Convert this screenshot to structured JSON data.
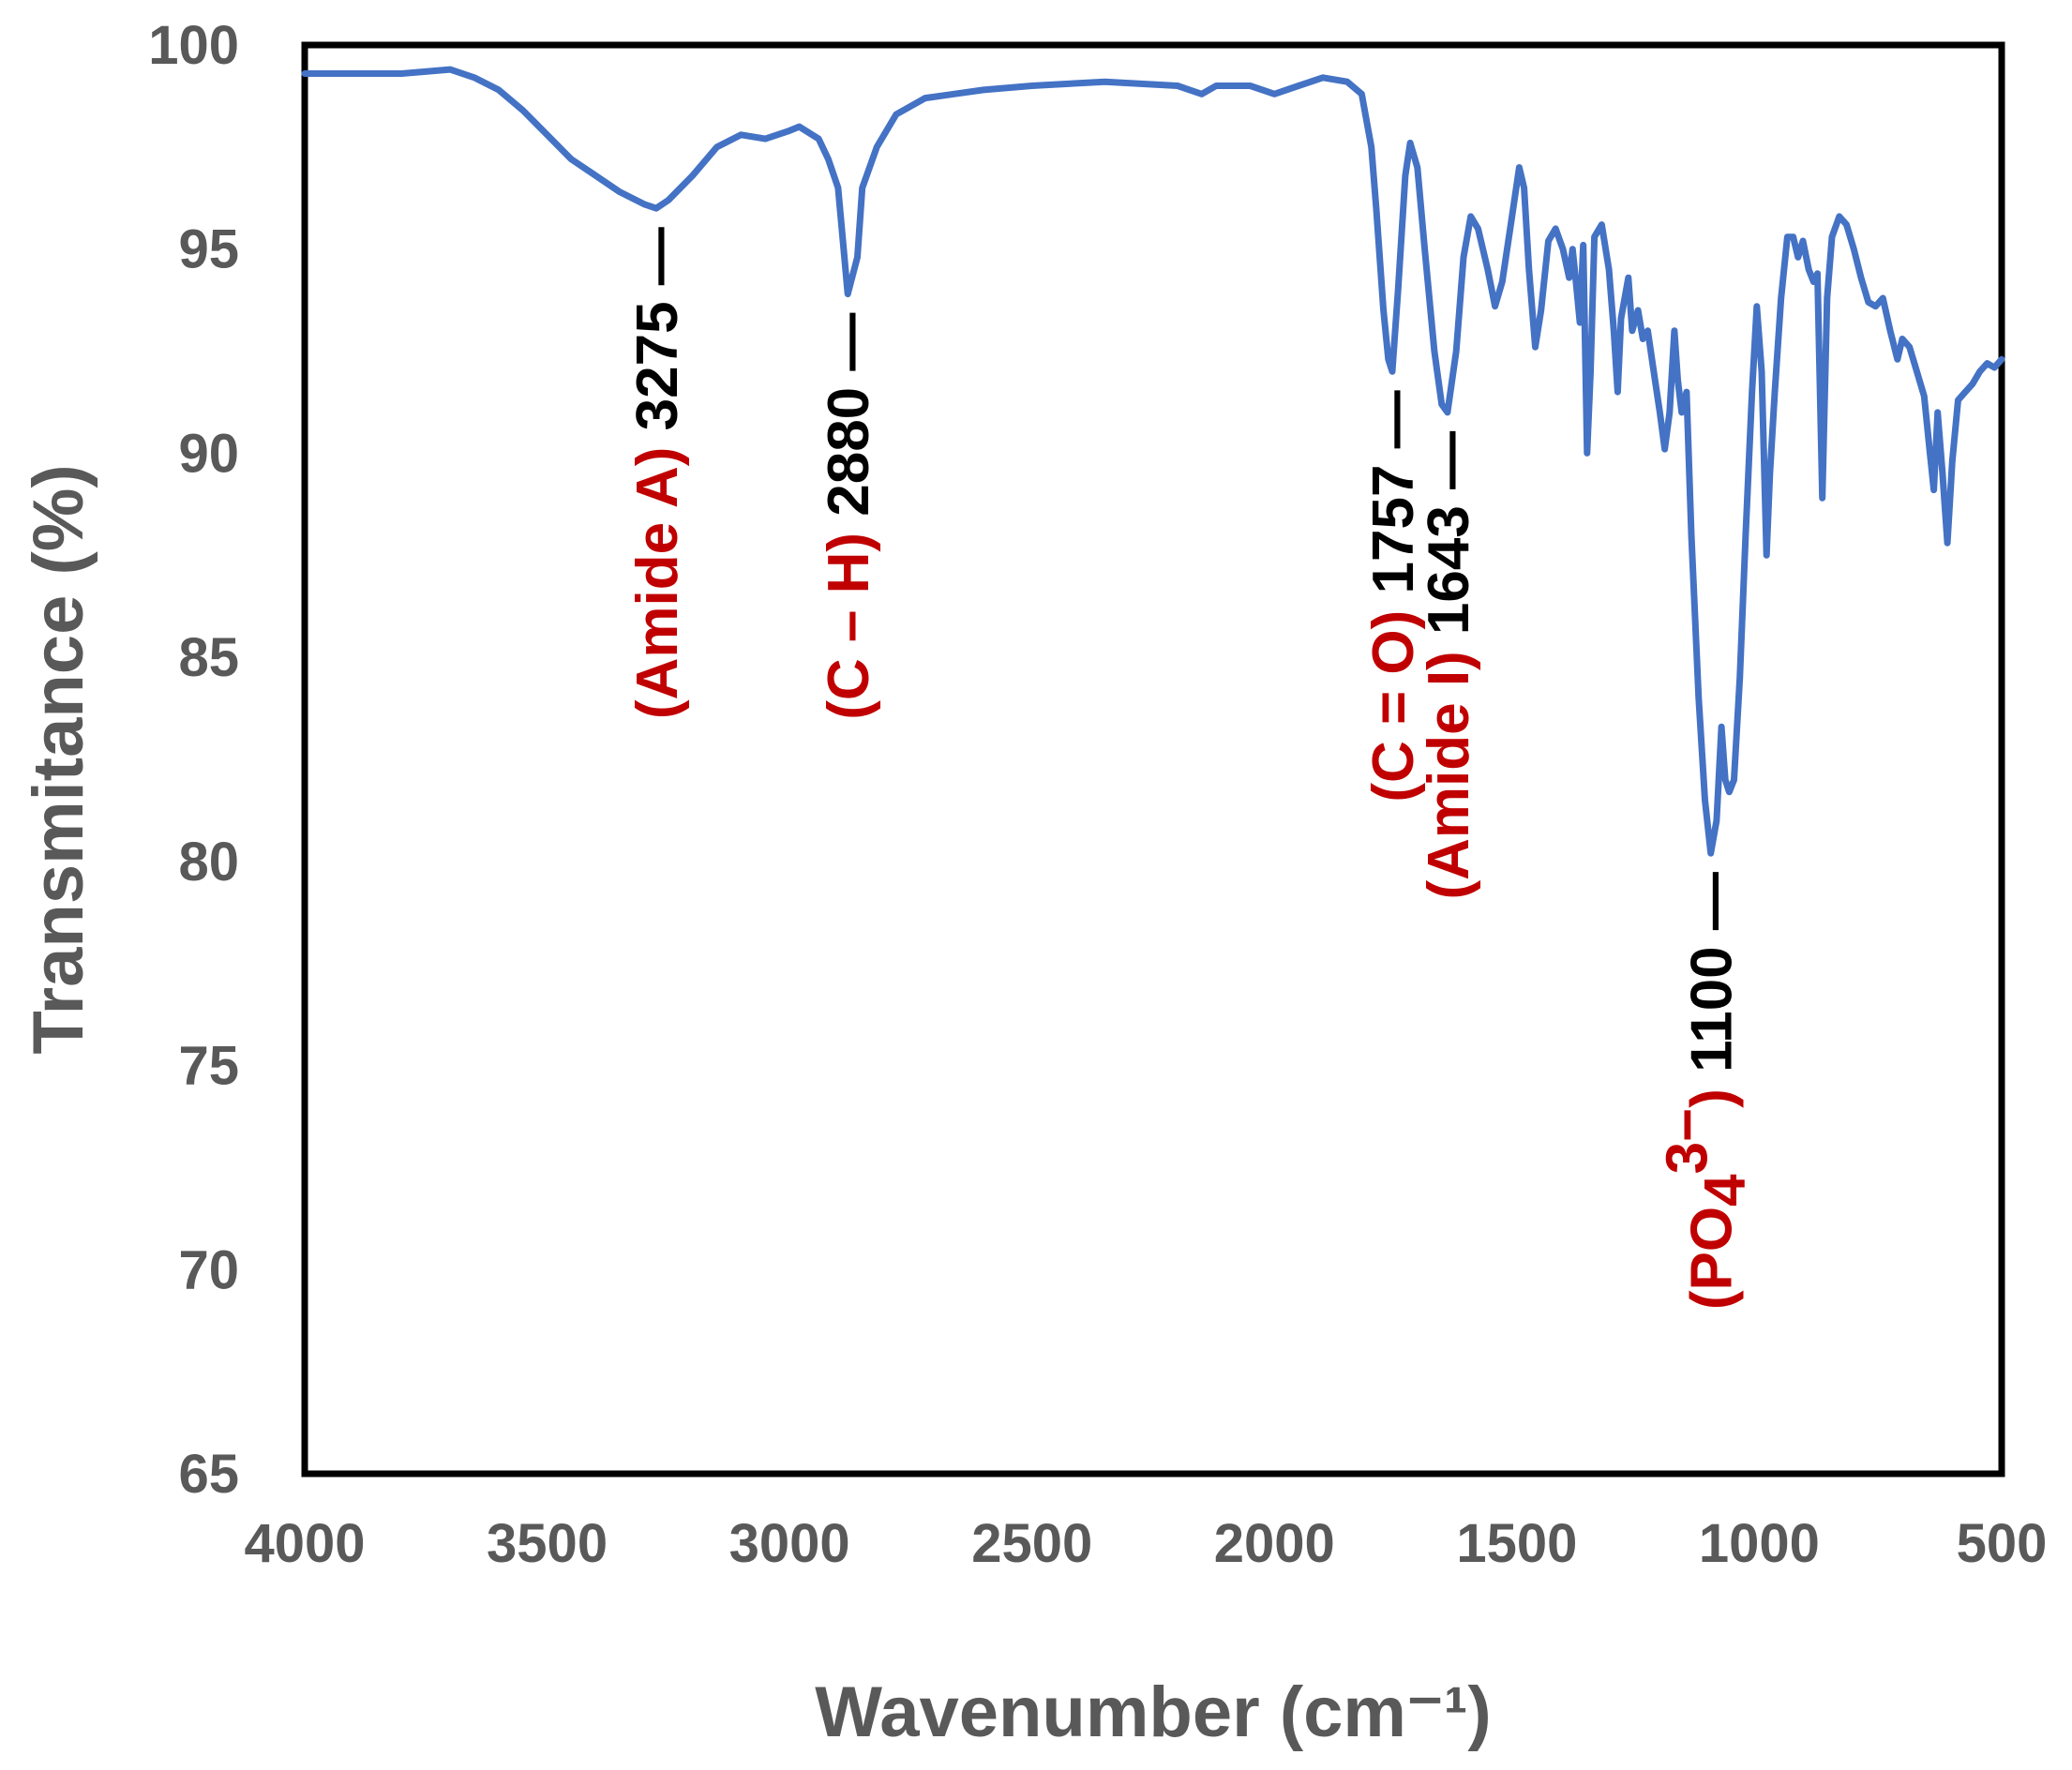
{
  "chart_data": {
    "type": "line",
    "xlabel": "Wavenumber (cm⁻¹)",
    "ylabel": "Transmitance (%)",
    "xlim": [
      4000,
      500
    ],
    "ylim": [
      65,
      100
    ],
    "x_ticks": [
      "4000",
      "3500",
      "3000",
      "2500",
      "2000",
      "1500",
      "1000",
      "500"
    ],
    "y_ticks": [
      "100",
      "95",
      "90",
      "85",
      "80",
      "75",
      "70",
      "65"
    ],
    "grid": false,
    "legend": "none",
    "line_color": "#4472C4",
    "series": [
      {
        "points": [
          [
            4000,
            99.3
          ],
          [
            3800,
            99.3
          ],
          [
            3700,
            99.4
          ],
          [
            3650,
            99.2
          ],
          [
            3600,
            98.9
          ],
          [
            3550,
            98.4
          ],
          [
            3500,
            97.8
          ],
          [
            3450,
            97.2
          ],
          [
            3400,
            96.8
          ],
          [
            3350,
            96.4
          ],
          [
            3300,
            96.1
          ],
          [
            3275,
            96.0
          ],
          [
            3250,
            96.2
          ],
          [
            3200,
            96.8
          ],
          [
            3150,
            97.5
          ],
          [
            3100,
            97.8
          ],
          [
            3050,
            97.7
          ],
          [
            3000,
            97.9
          ],
          [
            2980,
            98.0
          ],
          [
            2940,
            97.7
          ],
          [
            2920,
            97.2
          ],
          [
            2900,
            96.5
          ],
          [
            2880,
            93.9
          ],
          [
            2860,
            94.8
          ],
          [
            2850,
            96.5
          ],
          [
            2820,
            97.5
          ],
          [
            2780,
            98.3
          ],
          [
            2720,
            98.7
          ],
          [
            2600,
            98.9
          ],
          [
            2500,
            99.0
          ],
          [
            2350,
            99.1
          ],
          [
            2200,
            99.0
          ],
          [
            2150,
            98.8
          ],
          [
            2120,
            99.0
          ],
          [
            2050,
            99.0
          ],
          [
            2000,
            98.8
          ],
          [
            1950,
            99.0
          ],
          [
            1900,
            99.2
          ],
          [
            1850,
            99.1
          ],
          [
            1820,
            98.8
          ],
          [
            1800,
            97.5
          ],
          [
            1790,
            96.0
          ],
          [
            1775,
            93.5
          ],
          [
            1765,
            92.3
          ],
          [
            1757,
            92.0
          ],
          [
            1745,
            94.0
          ],
          [
            1730,
            96.8
          ],
          [
            1720,
            97.6
          ],
          [
            1705,
            97.0
          ],
          [
            1690,
            95.0
          ],
          [
            1670,
            92.5
          ],
          [
            1655,
            91.2
          ],
          [
            1643,
            91.0
          ],
          [
            1625,
            92.5
          ],
          [
            1610,
            94.8
          ],
          [
            1595,
            95.8
          ],
          [
            1580,
            95.5
          ],
          [
            1560,
            94.5
          ],
          [
            1545,
            93.6
          ],
          [
            1530,
            94.2
          ],
          [
            1510,
            95.8
          ],
          [
            1495,
            97.0
          ],
          [
            1485,
            96.5
          ],
          [
            1475,
            94.5
          ],
          [
            1462,
            92.6
          ],
          [
            1450,
            93.5
          ],
          [
            1435,
            95.2
          ],
          [
            1420,
            95.5
          ],
          [
            1405,
            95.0
          ],
          [
            1392,
            94.3
          ],
          [
            1385,
            95.0
          ],
          [
            1378,
            94.2
          ],
          [
            1370,
            93.2
          ],
          [
            1363,
            95.1
          ],
          [
            1355,
            90.0
          ],
          [
            1348,
            92.0
          ],
          [
            1340,
            95.3
          ],
          [
            1325,
            95.6
          ],
          [
            1310,
            94.5
          ],
          [
            1300,
            93.0
          ],
          [
            1292,
            91.5
          ],
          [
            1285,
            93.3
          ],
          [
            1270,
            94.3
          ],
          [
            1262,
            93.0
          ],
          [
            1250,
            93.5
          ],
          [
            1240,
            92.8
          ],
          [
            1230,
            93.0
          ],
          [
            1215,
            91.8
          ],
          [
            1205,
            91.0
          ],
          [
            1195,
            90.1
          ],
          [
            1185,
            91.0
          ],
          [
            1175,
            93.0
          ],
          [
            1168,
            91.8
          ],
          [
            1160,
            91.0
          ],
          [
            1150,
            91.5
          ],
          [
            1140,
            88.0
          ],
          [
            1125,
            84.0
          ],
          [
            1112,
            81.5
          ],
          [
            1100,
            80.2
          ],
          [
            1088,
            81.0
          ],
          [
            1078,
            83.3
          ],
          [
            1070,
            82.0
          ],
          [
            1062,
            81.7
          ],
          [
            1052,
            82.0
          ],
          [
            1040,
            84.5
          ],
          [
            1028,
            88.0
          ],
          [
            1015,
            91.5
          ],
          [
            1005,
            93.6
          ],
          [
            995,
            92.0
          ],
          [
            985,
            87.5
          ],
          [
            978,
            89.5
          ],
          [
            968,
            91.5
          ],
          [
            955,
            93.8
          ],
          [
            942,
            95.3
          ],
          [
            930,
            95.3
          ],
          [
            920,
            94.8
          ],
          [
            910,
            95.2
          ],
          [
            898,
            94.5
          ],
          [
            888,
            94.2
          ],
          [
            880,
            94.4
          ],
          [
            870,
            88.9
          ],
          [
            860,
            93.8
          ],
          [
            850,
            95.3
          ],
          [
            835,
            95.8
          ],
          [
            820,
            95.6
          ],
          [
            805,
            95.0
          ],
          [
            790,
            94.3
          ],
          [
            775,
            93.7
          ],
          [
            760,
            93.6
          ],
          [
            745,
            93.8
          ],
          [
            730,
            93.0
          ],
          [
            715,
            92.3
          ],
          [
            705,
            92.8
          ],
          [
            690,
            92.6
          ],
          [
            675,
            92.0
          ],
          [
            660,
            91.4
          ],
          [
            648,
            90.0
          ],
          [
            640,
            89.1
          ],
          [
            632,
            91.0
          ],
          [
            622,
            89.5
          ],
          [
            612,
            87.8
          ],
          [
            602,
            89.8
          ],
          [
            590,
            91.3
          ],
          [
            575,
            91.5
          ],
          [
            560,
            91.7
          ],
          [
            545,
            92.0
          ],
          [
            530,
            92.2
          ],
          [
            515,
            92.1
          ],
          [
            500,
            92.3
          ]
        ]
      }
    ],
    "annotations": [
      {
        "number": "3275",
        "label": "(Amide A)",
        "x": 3275
      },
      {
        "number": "2880",
        "label": "(C – H)",
        "x": 2880
      },
      {
        "number": "1757",
        "label": "(C = O)",
        "x": 1757
      },
      {
        "number": "1643",
        "label": "(Amide I)",
        "x": 1643
      },
      {
        "number": "1100",
        "label": "(PO",
        "sub": "4",
        "sup": "3−",
        "label_end": ")",
        "x": 1100
      }
    ],
    "annotation_number_color": "#000000",
    "annotation_label_color": "#C00000",
    "frame_color": "#000000"
  }
}
